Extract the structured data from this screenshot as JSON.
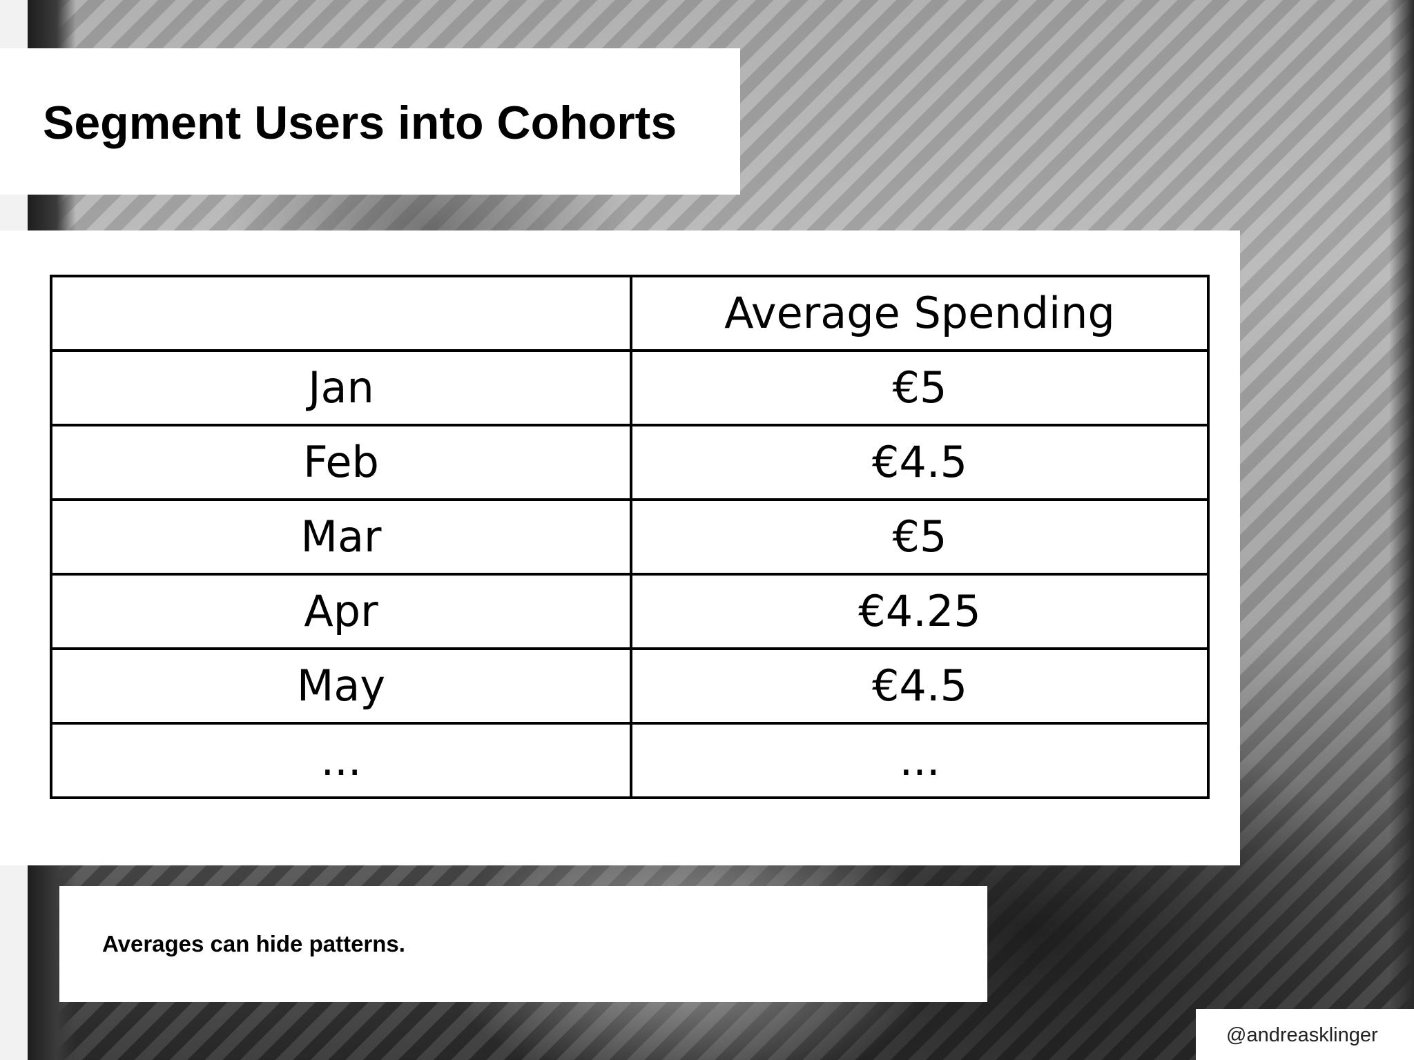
{
  "slide": {
    "title": "Segment Users into Cohorts",
    "note": "Averages can hide patterns.",
    "handle": "@andreasklinger"
  },
  "table": {
    "header": [
      "",
      "Average Spending"
    ],
    "rows": [
      [
        "Jan",
        "€5"
      ],
      [
        "Feb",
        "€4.5"
      ],
      [
        "Mar",
        "€5"
      ],
      [
        "Apr",
        "€4.25"
      ],
      [
        "May",
        "€4.5"
      ],
      [
        "...",
        "..."
      ]
    ]
  }
}
